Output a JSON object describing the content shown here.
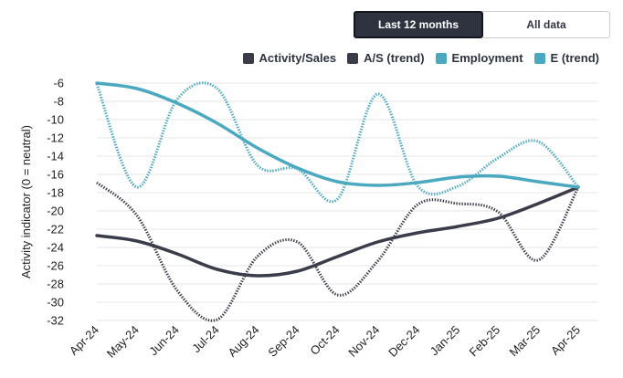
{
  "controls": {
    "range_active": "Last 12 months",
    "range_all": "All data"
  },
  "colors": {
    "dark": "#3a3c4a",
    "teal": "#4aa8c0",
    "grid": "#e6e6e6"
  },
  "chart_data": {
    "type": "line",
    "ylabel": "Activity indicator (0 = neutral)",
    "xlabel": "",
    "ylim": [
      -32,
      -6
    ],
    "yticks": [
      -6,
      -8,
      -10,
      -12,
      -14,
      -16,
      -18,
      -20,
      -22,
      -24,
      -26,
      -28,
      -30,
      -32
    ],
    "categories": [
      "Apr-24",
      "May-24",
      "Jun-24",
      "Jul-24",
      "Aug-24",
      "Sep-24",
      "Oct-24",
      "Nov-24",
      "Dec-24",
      "Jan-25",
      "Feb-25",
      "Mar-25",
      "Apr-25"
    ],
    "legend_position": "top-right",
    "grid": true,
    "series": [
      {
        "name": "Activity/Sales",
        "style": "dotted",
        "color": "#3a3c4a",
        "values": [
          -16.9,
          -20.5,
          -28.7,
          -31.9,
          -25.0,
          -23.4,
          -29.2,
          -25.5,
          -19.3,
          -19.2,
          -20.1,
          -25.4,
          -17.4
        ]
      },
      {
        "name": "A/S (trend)",
        "style": "solid",
        "color": "#3a3c4a",
        "values": [
          -22.7,
          -23.3,
          -24.7,
          -26.4,
          -27.1,
          -26.6,
          -25.0,
          -23.4,
          -22.4,
          -21.7,
          -20.8,
          -19.2,
          -17.4
        ]
      },
      {
        "name": "Employment",
        "style": "dotted",
        "color": "#4aa8c0",
        "values": [
          -6.1,
          -17.4,
          -7.8,
          -6.6,
          -15.0,
          -15.4,
          -18.7,
          -7.2,
          -17.3,
          -17.3,
          -14.2,
          -12.4,
          -17.4
        ]
      },
      {
        "name": "E (trend)",
        "style": "solid",
        "color": "#4aa8c0",
        "values": [
          -6.0,
          -6.6,
          -8.2,
          -10.4,
          -13.1,
          -15.3,
          -16.8,
          -17.2,
          -16.9,
          -16.3,
          -16.2,
          -16.8,
          -17.4
        ]
      }
    ]
  }
}
